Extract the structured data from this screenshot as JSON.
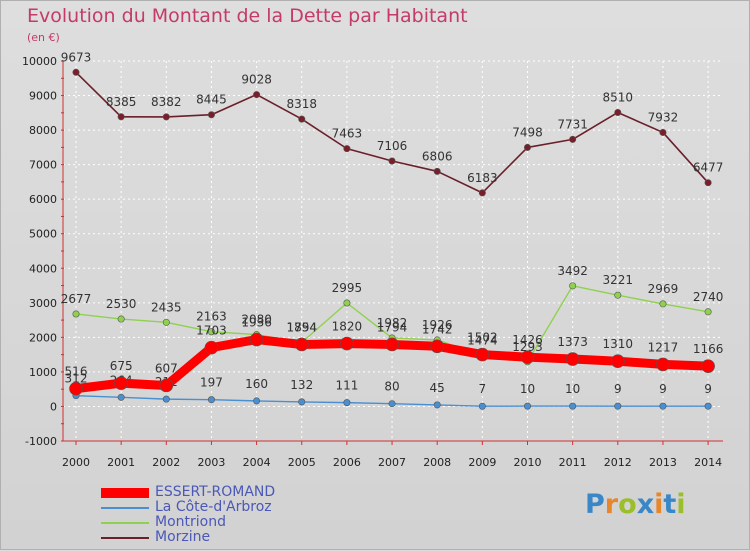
{
  "title": "Evolution du Montant de la Dette par Habitant",
  "subtitle": "(en €)",
  "logo": {
    "text": "Proxiti",
    "letters": [
      {
        "ch": "P",
        "color": "#3a87c8"
      },
      {
        "ch": "r",
        "color": "#e8862b"
      },
      {
        "ch": "o",
        "color": "#9bbf2a"
      },
      {
        "ch": "x",
        "color": "#3a87c8"
      },
      {
        "ch": "i",
        "color": "#e8862b"
      },
      {
        "ch": "t",
        "color": "#3a87c8"
      },
      {
        "ch": "i",
        "color": "#9bbf2a"
      }
    ]
  },
  "chart_data": {
    "type": "line",
    "title": "Evolution du Montant de la Dette par Habitant",
    "subtitle": "(en €)",
    "xlabel": "",
    "ylabel": "",
    "x": [
      "2000",
      "2001",
      "2002",
      "2003",
      "2004",
      "2005",
      "2006",
      "2007",
      "2008",
      "2009",
      "2010",
      "2011",
      "2012",
      "2013",
      "2014"
    ],
    "ylim": [
      -1000,
      10000
    ],
    "yticks": [
      -1000,
      0,
      1000,
      2000,
      3000,
      4000,
      5000,
      6000,
      7000,
      8000,
      9000,
      10000
    ],
    "grid": true,
    "legend": "bottom-left",
    "series": [
      {
        "name": "Morzine",
        "color": "#6b1f2a",
        "values": [
          9673,
          8385,
          8382,
          8445,
          9028,
          8318,
          7463,
          7106,
          6806,
          6183,
          7498,
          7731,
          8510,
          7932,
          6477
        ]
      },
      {
        "name": "Montriond",
        "color": "#8fd14f",
        "values": [
          2677,
          2530,
          2435,
          2163,
          2080,
          1854,
          2995,
          1982,
          1926,
          1474,
          1293,
          3492,
          3221,
          2969,
          2740
        ]
      },
      {
        "name": "La Côte-d'Arbroz",
        "color": "#4a8fd0",
        "values": [
          312,
          264,
          212,
          197,
          160,
          132,
          111,
          80,
          45,
          7,
          10,
          10,
          9,
          9,
          9
        ]
      },
      {
        "name": "ESSERT-ROMAND",
        "color": "#ff0000",
        "values": [
          516,
          675,
          607,
          1703,
          1936,
          1794,
          1820,
          1794,
          1742,
          1502,
          1426,
          1373,
          1310,
          1217,
          1166
        ]
      }
    ]
  }
}
